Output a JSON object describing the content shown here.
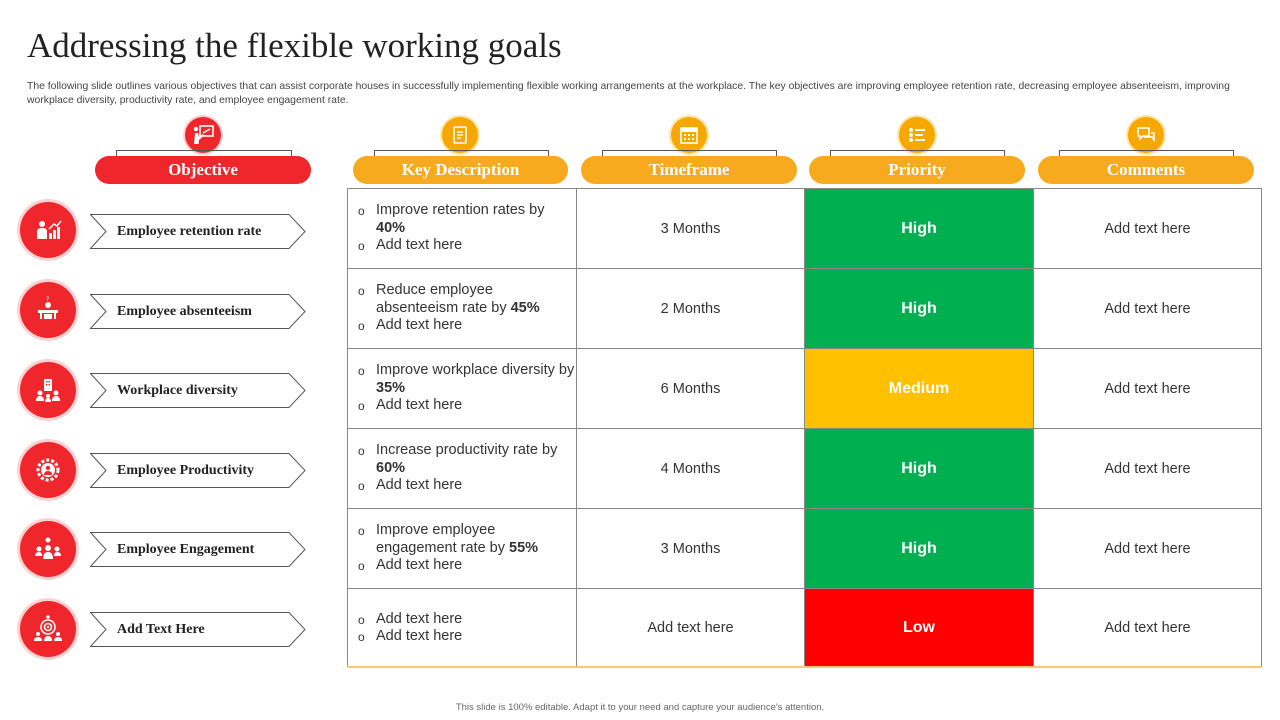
{
  "title": "Addressing the flexible working goals",
  "subtitle": "The following slide outlines various objectives that can assist corporate houses in successfully implementing flexible working arrangements at the workplace. The key objectives are improving employee retention rate, decreasing employee absenteeism, improving workplace diversity, productivity rate, and employee engagement rate.",
  "headers": {
    "objective": "Objective",
    "key_description": "Key Description",
    "timeframe": "Timeframe",
    "priority": "Priority",
    "comments": "Comments"
  },
  "header_icons": [
    "presenter-icon",
    "document-icon",
    "calendar-icon",
    "priority-list-icon",
    "comments-icon"
  ],
  "colors": {
    "red": "#f0262d",
    "orange": "#f7aa1d",
    "high": "#00b050",
    "medium": "#ffc000",
    "low": "#ff0000"
  },
  "objectives": [
    {
      "label": "Employee retention rate",
      "icon": "growth-chart-icon"
    },
    {
      "label": "Employee absenteeism",
      "icon": "empty-desk-icon"
    },
    {
      "label": "Workplace diversity",
      "icon": "diverse-team-icon"
    },
    {
      "label": "Employee Productivity",
      "icon": "gear-person-icon"
    },
    {
      "label": "Employee Engagement",
      "icon": "network-people-icon"
    },
    {
      "label": "Add Text Here",
      "icon": "target-team-icon"
    }
  ],
  "rows": [
    {
      "desc_pre": "Improve retention rates by ",
      "desc_bold": "40%",
      "desc_add": "Add text here",
      "timeframe": "3 Months",
      "priority": "High",
      "priority_level": "high",
      "comments": "Add text here"
    },
    {
      "desc_pre": "Reduce employee absenteeism rate by ",
      "desc_bold": "45%",
      "desc_add": "Add text here",
      "timeframe": "2 Months",
      "priority": "High",
      "priority_level": "high",
      "comments": "Add text here"
    },
    {
      "desc_pre": "Improve workplace diversity by ",
      "desc_bold": "35%",
      "desc_add": "Add text here",
      "timeframe": "6 Months",
      "priority": "Medium",
      "priority_level": "medium",
      "comments": "Add text here"
    },
    {
      "desc_pre": "Increase productivity rate by ",
      "desc_bold": "60%",
      "desc_add": "Add text here",
      "timeframe": "4 Months",
      "priority": "High",
      "priority_level": "high",
      "comments": "Add text here"
    },
    {
      "desc_pre": "Improve employee engagement rate by ",
      "desc_bold": "55%",
      "desc_add": "Add text here",
      "timeframe": "3 Months",
      "priority": "High",
      "priority_level": "high",
      "comments": "Add text here"
    },
    {
      "desc_pre": "Add text here",
      "desc_bold": "",
      "desc_add": "Add text here",
      "timeframe": "Add text here",
      "priority": "Low",
      "priority_level": "low",
      "comments": "Add text here"
    }
  ],
  "footer": "This slide is 100% editable. Adapt it to your need and capture your audience's attention."
}
